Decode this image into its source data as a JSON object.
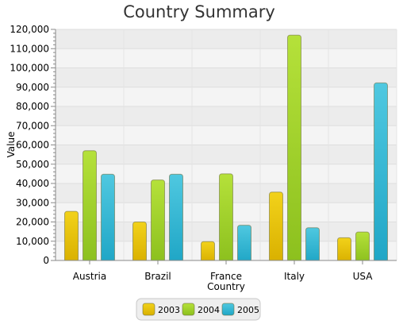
{
  "chart_data": {
    "type": "bar",
    "title": "Country Summary",
    "xlabel": "Country",
    "ylabel": "Value",
    "categories": [
      "Austria",
      "Brazil",
      "France",
      "Italy",
      "USA"
    ],
    "ylim": [
      0,
      120000
    ],
    "ytick_step": 10000,
    "ytick_labels": [
      "0",
      "10,000",
      "20,000",
      "30,000",
      "40,000",
      "50,000",
      "60,000",
      "70,000",
      "80,000",
      "90,000",
      "100,000",
      "110,000",
      "120,000"
    ],
    "grid": true,
    "legend_position": "bottom",
    "series": [
      {
        "name": "2003",
        "values": [
          25500,
          20000,
          9800,
          35500,
          11800
        ],
        "color": "#f2d21a",
        "color_dark": "#d9b000"
      },
      {
        "name": "2004",
        "values": [
          57000,
          41800,
          45000,
          117000,
          14800
        ],
        "color": "#b5e13a",
        "color_dark": "#8cc01e"
      },
      {
        "name": "2005",
        "values": [
          44800,
          44800,
          18300,
          17000,
          92200
        ],
        "color": "#4fc8e0",
        "color_dark": "#1fa6c6"
      }
    ]
  }
}
